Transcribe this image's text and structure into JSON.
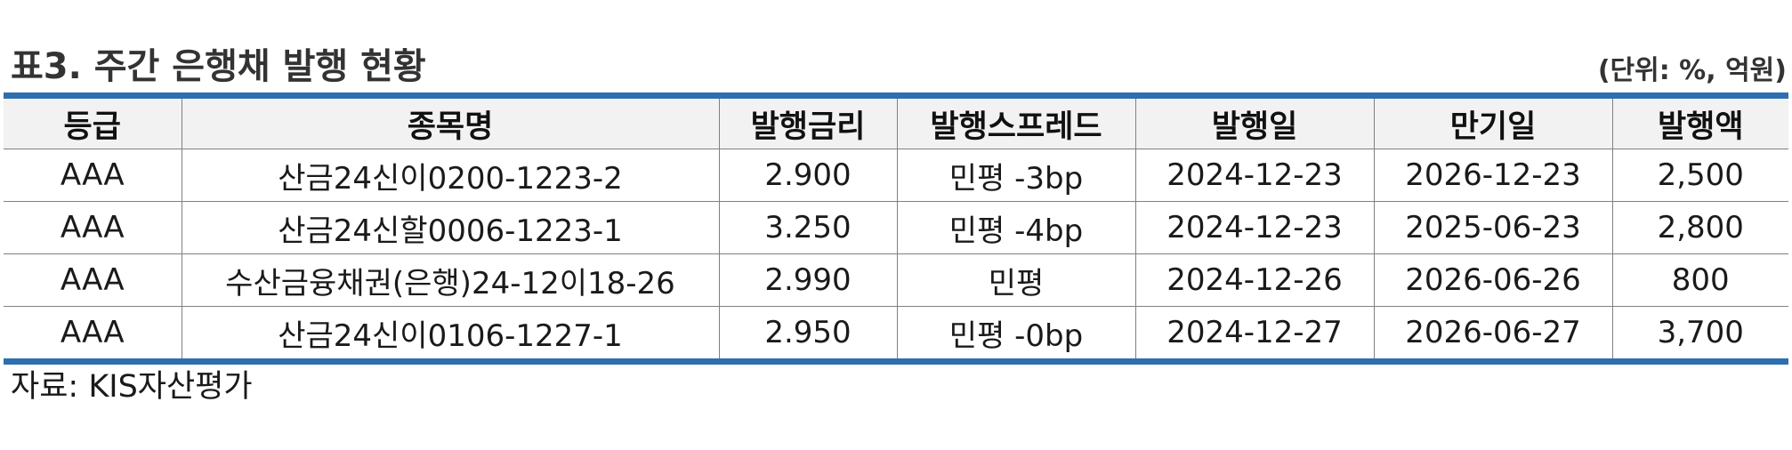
{
  "title": "표3. 주간 은행채 발행 현황",
  "unit": "(단위: %, 억원)",
  "table": {
    "headers": [
      "등급",
      "종목명",
      "발행금리",
      "발행스프레드",
      "발행일",
      "만기일",
      "발행액"
    ],
    "rows": [
      [
        "AAA",
        "산금24신이0200-1223-2",
        "2.900",
        "민평 -3bp",
        "2024-12-23",
        "2026-12-23",
        "2,500"
      ],
      [
        "AAA",
        "산금24신할0006-1223-1",
        "3.250",
        "민평 -4bp",
        "2024-12-23",
        "2025-06-23",
        "2,800"
      ],
      [
        "AAA",
        "수산금융채권(은행)24-12이18-26",
        "2.990",
        "민평",
        "2024-12-26",
        "2026-06-26",
        "800"
      ],
      [
        "AAA",
        "산금24신이0106-1227-1",
        "2.950",
        "민평 -0bp",
        "2024-12-27",
        "2026-06-27",
        "3,700"
      ]
    ]
  },
  "source": "자료: KIS자산평가",
  "colors": {
    "accent_rule": "#2e6fb0",
    "header_bg": "#f2f2f2"
  }
}
